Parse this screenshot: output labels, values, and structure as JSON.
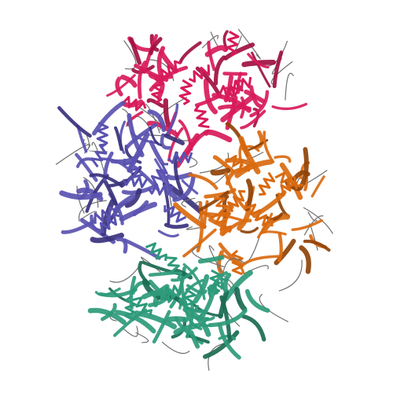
{
  "image": {
    "background": "#ffffff",
    "style": "ribbon-cartoon",
    "chains": [
      {
        "name": "chain-magenta",
        "color": "#d81b5a",
        "color_dark": "#a0103f"
      },
      {
        "name": "chain-blue",
        "color": "#5a52b0",
        "color_dark": "#3a327c"
      },
      {
        "name": "chain-orange",
        "color": "#d96a10",
        "color_dark": "#8f4206"
      },
      {
        "name": "chain-green",
        "color": "#2e9a7a",
        "color_dark": "#1b6a52"
      }
    ],
    "loop_color": "#6f6f6f"
  }
}
